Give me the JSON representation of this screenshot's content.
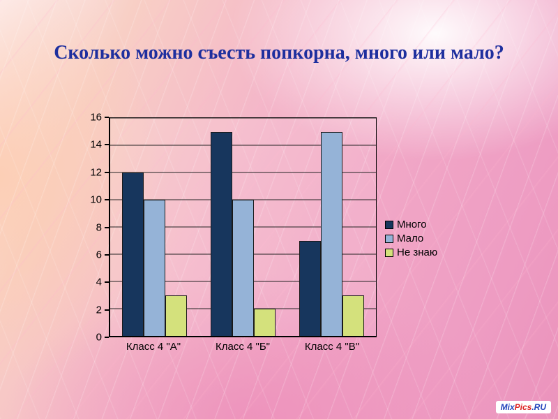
{
  "slide": {
    "title": "Сколько  можно съесть попкорна, много или мало?",
    "title_color": "#1e2f9e"
  },
  "watermark": {
    "part1": "Mix",
    "part2": "Pics",
    "part3": ".RU",
    "part1_color": "#2244bb",
    "part2_color": "#dd2222",
    "part3_color": "#2244bb"
  },
  "chart_data": {
    "type": "bar",
    "title": "Сколько  можно съесть попкорна, много или мало?",
    "categories": [
      "Класс 4 \"А\"",
      "Класс 4 \"Б\"",
      "Класс 4 \"В\""
    ],
    "series": [
      {
        "name": "Много",
        "color": "#17365d",
        "values": [
          12,
          15,
          7
        ]
      },
      {
        "name": "Мало",
        "color": "#95b3d7",
        "values": [
          10,
          10,
          15
        ]
      },
      {
        "name": "Не знаю",
        "color": "#d4e17c",
        "values": [
          3,
          2,
          3
        ]
      }
    ],
    "ylim": [
      0,
      16
    ],
    "ytick_step": 2,
    "grid": true,
    "legend_position": "right",
    "xlabel": "",
    "ylabel": ""
  }
}
